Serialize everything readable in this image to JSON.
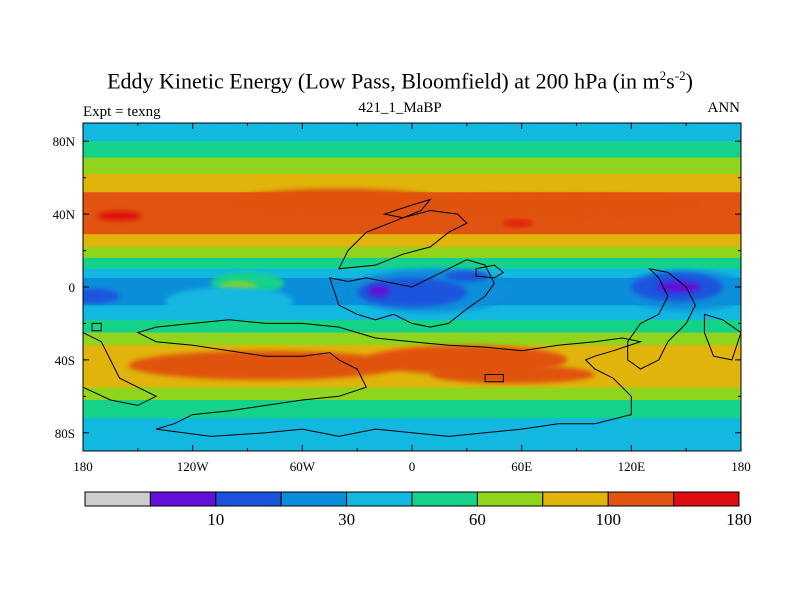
{
  "title": {
    "main": "Eddy Kinetic Energy (Low Pass, Bloomfield) at 200 hPa (in m",
    "sup1": "2",
    "mid": "s",
    "sup2": "-2",
    "close": ")"
  },
  "subtitle": {
    "left": "Expt = texng",
    "center": "421_1_MaBP",
    "right": "ANN"
  },
  "chart_data": {
    "type": "heatmap",
    "projection": "cylindrical-equidistant",
    "x_range": [
      -180,
      180
    ],
    "y_range": [
      -90,
      90
    ],
    "x_ticks": [
      {
        "value": -180,
        "label": "180"
      },
      {
        "value": -120,
        "label": "120W"
      },
      {
        "value": -60,
        "label": "60W"
      },
      {
        "value": 0,
        "label": "0"
      },
      {
        "value": 60,
        "label": "60E"
      },
      {
        "value": 120,
        "label": "120E"
      },
      {
        "value": 180,
        "label": "180"
      }
    ],
    "y_ticks": [
      {
        "value": 80,
        "label": "80N"
      },
      {
        "value": 40,
        "label": "40N"
      },
      {
        "value": 0,
        "label": "0"
      },
      {
        "value": -40,
        "label": "40S"
      },
      {
        "value": -80,
        "label": "80S"
      }
    ],
    "bands": [
      {
        "lat_top": 90,
        "lat_bottom": 80,
        "color": "#13b8e0"
      },
      {
        "lat_top": 80,
        "lat_bottom": 71,
        "color": "#14d28a"
      },
      {
        "lat_top": 71,
        "lat_bottom": 62,
        "color": "#91d41e"
      },
      {
        "lat_top": 62,
        "lat_bottom": 52,
        "color": "#e0b40b"
      },
      {
        "lat_top": 52,
        "lat_bottom": 29,
        "color": "#e05310"
      },
      {
        "lat_top": 29,
        "lat_bottom": 22,
        "color": "#e0b40b"
      },
      {
        "lat_top": 22,
        "lat_bottom": 16,
        "color": "#91d41e"
      },
      {
        "lat_top": 16,
        "lat_bottom": 10,
        "color": "#14d28a"
      },
      {
        "lat_top": 10,
        "lat_bottom": 5,
        "color": "#13b8e0"
      },
      {
        "lat_top": 5,
        "lat_bottom": -10,
        "color": "#0b8ed9"
      },
      {
        "lat_top": -10,
        "lat_bottom": -18,
        "color": "#13b8e0"
      },
      {
        "lat_top": -18,
        "lat_bottom": -25,
        "color": "#14d28a"
      },
      {
        "lat_top": -25,
        "lat_bottom": -32,
        "color": "#91d41e"
      },
      {
        "lat_top": -32,
        "lat_bottom": -55,
        "color": "#e0b40b"
      },
      {
        "lat_top": -55,
        "lat_bottom": -62,
        "color": "#91d41e"
      },
      {
        "lat_top": -62,
        "lat_bottom": -72,
        "color": "#14d28a"
      },
      {
        "lat_top": -72,
        "lat_bottom": -90,
        "color": "#13b8e0"
      }
    ],
    "blobs": [
      {
        "lon": -40,
        "lat": 47,
        "rlon": 58,
        "rlat": 7,
        "color": "#e05310"
      },
      {
        "lon": 80,
        "lat": 45,
        "rlon": 75,
        "rlat": 6,
        "color": "#e05310"
      },
      {
        "lon": -160,
        "lat": 39,
        "rlon": 12,
        "rlat": 2.5,
        "color": "#e00d10"
      },
      {
        "lon": 58,
        "lat": 35,
        "rlon": 8,
        "rlat": 1.5,
        "color": "#e00d10"
      },
      {
        "lon": -80,
        "lat": -43,
        "rlon": 75,
        "rlat": 8,
        "color": "#e05310"
      },
      {
        "lon": 30,
        "lat": -40,
        "rlon": 55,
        "rlat": 8,
        "color": "#e05310"
      },
      {
        "lon": 55,
        "lat": -48,
        "rlon": 45,
        "rlat": 5,
        "color": "#e05310"
      },
      {
        "lon": -90,
        "lat": 2,
        "rlon": 20,
        "rlat": 6,
        "color": "#14d28a"
      },
      {
        "lon": -95,
        "lat": 0,
        "rlon": 10,
        "rlat": 3,
        "color": "#91d41e"
      },
      {
        "lon": -100,
        "lat": -8,
        "rlon": 35,
        "rlat": 8,
        "color": "#13b8e0"
      },
      {
        "lon": 10,
        "lat": -2,
        "rlon": 45,
        "rlat": 12,
        "color": "#0b8ed9"
      },
      {
        "lon": 150,
        "lat": -2,
        "rlon": 35,
        "rlat": 11,
        "color": "#0b8ed9"
      },
      {
        "lon": 0,
        "lat": -3,
        "rlon": 30,
        "rlat": 8,
        "color": "#1a54dd"
      },
      {
        "lon": 30,
        "lat": 6,
        "rlon": 12,
        "rlat": 3,
        "color": "#1a54dd"
      },
      {
        "lon": 145,
        "lat": 0,
        "rlon": 25,
        "rlat": 8,
        "color": "#1a54dd"
      },
      {
        "lon": -175,
        "lat": -5,
        "rlon": 15,
        "rlat": 4,
        "color": "#1a54dd"
      },
      {
        "lon": -18,
        "lat": -2,
        "rlon": 6,
        "rlat": 3,
        "color": "#6410d8"
      },
      {
        "lon": 146,
        "lat": 0,
        "rlon": 12,
        "rlat": 3,
        "color": "#6410d8"
      }
    ],
    "continent_outlines": [
      [
        [
          -40,
          10
        ],
        [
          -20,
          12
        ],
        [
          -5,
          18
        ],
        [
          10,
          22
        ],
        [
          20,
          30
        ],
        [
          30,
          35
        ],
        [
          25,
          40
        ],
        [
          10,
          42
        ],
        [
          -5,
          38
        ],
        [
          -25,
          30
        ],
        [
          -35,
          20
        ],
        [
          -40,
          10
        ]
      ],
      [
        [
          -45,
          5
        ],
        [
          -40,
          -10
        ],
        [
          -30,
          -15
        ],
        [
          -20,
          -18
        ],
        [
          -10,
          -15
        ],
        [
          0,
          -20
        ],
        [
          10,
          -22
        ],
        [
          20,
          -20
        ],
        [
          30,
          -12
        ],
        [
          40,
          -5
        ],
        [
          45,
          2
        ],
        [
          40,
          12
        ],
        [
          30,
          15
        ],
        [
          20,
          10
        ],
        [
          10,
          5
        ],
        [
          0,
          0
        ],
        [
          -10,
          2
        ],
        [
          -25,
          5
        ],
        [
          -35,
          3
        ],
        [
          -45,
          5
        ]
      ],
      [
        [
          -150,
          -25
        ],
        [
          -140,
          -30
        ],
        [
          -120,
          -32
        ],
        [
          -100,
          -35
        ],
        [
          -80,
          -38
        ],
        [
          -60,
          -38
        ],
        [
          -45,
          -36
        ],
        [
          -40,
          -40
        ],
        [
          -30,
          -45
        ],
        [
          -25,
          -55
        ],
        [
          -40,
          -60
        ],
        [
          -60,
          -62
        ],
        [
          -80,
          -65
        ],
        [
          -100,
          -68
        ],
        [
          -120,
          -70
        ],
        [
          -130,
          -75
        ],
        [
          -140,
          -78
        ],
        [
          -110,
          -82
        ],
        [
          -80,
          -80
        ],
        [
          -60,
          -78
        ],
        [
          -40,
          -82
        ],
        [
          -20,
          -78
        ],
        [
          0,
          -80
        ],
        [
          20,
          -82
        ],
        [
          40,
          -80
        ],
        [
          60,
          -78
        ],
        [
          80,
          -75
        ],
        [
          100,
          -75
        ],
        [
          120,
          -70
        ],
        [
          120,
          -60
        ],
        [
          110,
          -50
        ],
        [
          100,
          -45
        ],
        [
          95,
          -40
        ],
        [
          100,
          -38
        ],
        [
          110,
          -35
        ],
        [
          125,
          -30
        ],
        [
          115,
          -28
        ],
        [
          100,
          -30
        ],
        [
          80,
          -32
        ],
        [
          60,
          -35
        ],
        [
          40,
          -33
        ],
        [
          20,
          -32
        ],
        [
          0,
          -30
        ],
        [
          -20,
          -28
        ],
        [
          -40,
          -22
        ],
        [
          -60,
          -20
        ],
        [
          -80,
          -20
        ],
        [
          -100,
          -18
        ],
        [
          -120,
          -20
        ],
        [
          -140,
          -22
        ],
        [
          -150,
          -25
        ]
      ],
      [
        [
          130,
          10
        ],
        [
          135,
          5
        ],
        [
          140,
          -5
        ],
        [
          135,
          -15
        ],
        [
          125,
          -20
        ],
        [
          118,
          -30
        ],
        [
          118,
          -40
        ],
        [
          125,
          -45
        ],
        [
          135,
          -40
        ],
        [
          140,
          -30
        ],
        [
          150,
          -20
        ],
        [
          155,
          -10
        ],
        [
          150,
          0
        ],
        [
          140,
          8
        ],
        [
          130,
          10
        ]
      ],
      [
        [
          160,
          -15
        ],
        [
          170,
          -18
        ],
        [
          180,
          -25
        ],
        [
          175,
          -40
        ],
        [
          165,
          -38
        ],
        [
          160,
          -25
        ],
        [
          160,
          -15
        ]
      ],
      [
        [
          -180,
          -25
        ],
        [
          -170,
          -30
        ],
        [
          -165,
          -40
        ],
        [
          -160,
          -50
        ],
        [
          -150,
          -55
        ],
        [
          -140,
          -60
        ],
        [
          -150,
          -65
        ],
        [
          -165,
          -62
        ],
        [
          -180,
          -55
        ]
      ],
      [
        [
          -175,
          -20
        ],
        [
          -170,
          -20
        ],
        [
          -170,
          -24
        ],
        [
          -175,
          -24
        ],
        [
          -175,
          -20
        ]
      ],
      [
        [
          40,
          -48
        ],
        [
          50,
          -48
        ],
        [
          50,
          -52
        ],
        [
          40,
          -52
        ],
        [
          40,
          -48
        ]
      ],
      [
        [
          -15,
          40
        ],
        [
          0,
          45
        ],
        [
          10,
          48
        ],
        [
          5,
          42
        ],
        [
          -5,
          38
        ],
        [
          -15,
          40
        ]
      ],
      [
        [
          35,
          10
        ],
        [
          45,
          12
        ],
        [
          50,
          8
        ],
        [
          45,
          5
        ],
        [
          35,
          6
        ],
        [
          35,
          10
        ]
      ]
    ],
    "colorbar": {
      "colors": [
        "#cccccc",
        "#6410d8",
        "#1a54dd",
        "#0b8ed9",
        "#13b8e0",
        "#14d28a",
        "#91d41e",
        "#e0b40b",
        "#e05310",
        "#e00d10"
      ],
      "labels": [
        {
          "after_box": 1,
          "text": "10"
        },
        {
          "after_box": 3,
          "text": "30"
        },
        {
          "after_box": 5,
          "text": "60"
        },
        {
          "after_box": 7,
          "text": "100"
        },
        {
          "after_box": 9,
          "text": "180"
        }
      ]
    }
  }
}
